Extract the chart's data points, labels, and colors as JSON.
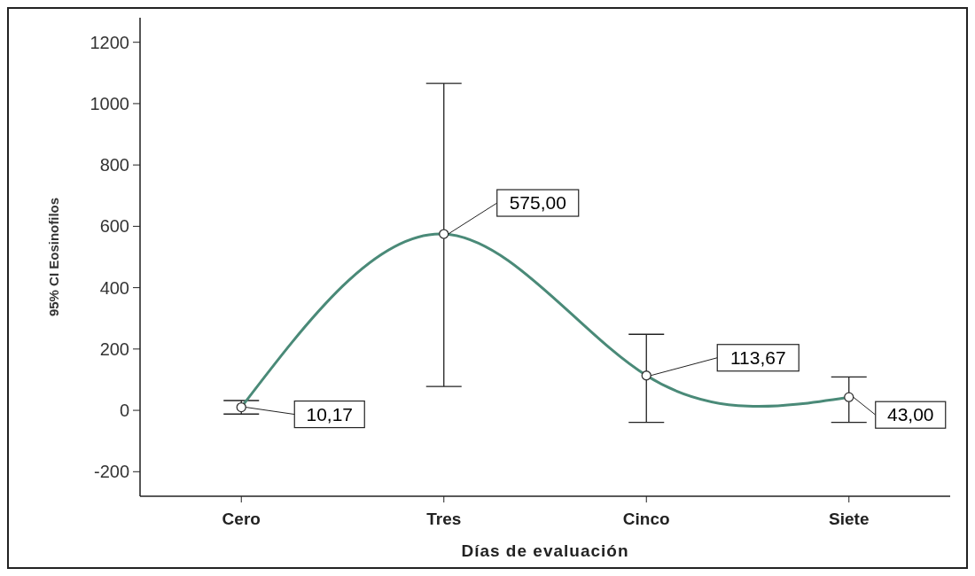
{
  "chart_data": {
    "type": "line",
    "xlabel": "Días de evaluación",
    "ylabel": "95% CI Eosinofilos",
    "categories": [
      "Cero",
      "Tres",
      "Cinco",
      "Siete"
    ],
    "series": [
      {
        "color": "#4a8a78",
        "values": [
          10.17,
          575,
          113.67,
          43
        ],
        "errors": [
          [
            -12,
            32
          ],
          [
            78,
            1066
          ],
          [
            -39,
            248
          ],
          [
            -39,
            109
          ]
        ],
        "value_labels": [
          "10,17",
          "575,00",
          "113,67",
          "43,00"
        ]
      }
    ],
    "ylim": [
      -280,
      1280
    ],
    "yticks": [
      -200,
      0,
      200,
      400,
      600,
      800,
      1000,
      1200
    ],
    "marker": "circle",
    "grid": false
  }
}
